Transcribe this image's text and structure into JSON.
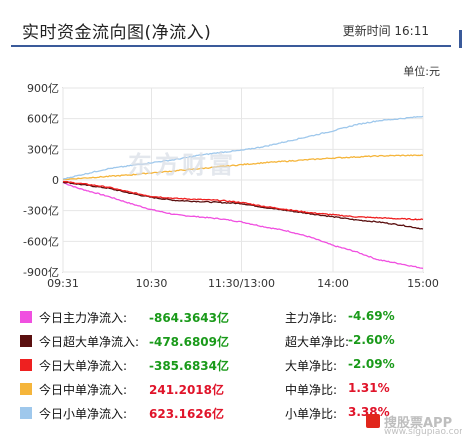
{
  "header": {
    "title": "实时资金流向图(净流入)",
    "updated_label": "更新时间",
    "time": "16:11"
  },
  "unit_label": "单位:元",
  "watermark": "东方财富",
  "site_badge": {
    "name": "搜股票APP",
    "url": "www.sigupiao.com"
  },
  "colors": {
    "main": "#f050e0",
    "super": "#5a0f0f",
    "large": "#ee2020",
    "medium": "#f5b53b",
    "small": "#9fc8ec",
    "accent": "#3a5a9a"
  },
  "legend": [
    {
      "label": "今日主力净流入:",
      "value": "-864.3643亿",
      "ratio_label": "主力净比:",
      "ratio": "-4.69%",
      "sign": "neg",
      "color": "#f050e0"
    },
    {
      "label": "今日超大单净流入:",
      "value": "-478.6809亿",
      "ratio_label": "超大单净比:",
      "ratio": "-2.60%",
      "sign": "neg",
      "color": "#5a0f0f"
    },
    {
      "label": "今日大单净流入:",
      "value": "-385.6834亿",
      "ratio_label": "大单净比:",
      "ratio": "-2.09%",
      "sign": "neg",
      "color": "#ee2020"
    },
    {
      "label": "今日中单净流入:",
      "value": "241.2018亿",
      "ratio_label": "中单净比:",
      "ratio": "1.31%",
      "sign": "pos",
      "color": "#f5b53b"
    },
    {
      "label": "今日小单净流入:",
      "value": "623.1626亿",
      "ratio_label": "小单净比:",
      "ratio": "3.38%",
      "sign": "pos",
      "color": "#9fc8ec"
    }
  ],
  "chart_data": {
    "type": "line",
    "ylim": [
      -900,
      900
    ],
    "yticks": [
      "900亿",
      "600亿",
      "300亿",
      "0",
      "-300亿",
      "-600亿",
      "-900亿"
    ],
    "ytick_values": [
      900,
      600,
      300,
      0,
      -300,
      -600,
      -900
    ],
    "xticks": [
      "09:31",
      "10:30",
      "11:30",
      "13:00",
      "14:00",
      "15:00"
    ],
    "xtick_index": [
      0,
      59,
      119,
      120,
      180,
      240
    ],
    "n_points": 241,
    "grid": true,
    "series": [
      {
        "name": "今日主力净流入",
        "color": "#f050e0",
        "knots": [
          [
            0,
            -25
          ],
          [
            10,
            -80
          ],
          [
            20,
            -120
          ],
          [
            30,
            -160
          ],
          [
            45,
            -230
          ],
          [
            59,
            -290
          ],
          [
            75,
            -340
          ],
          [
            90,
            -360
          ],
          [
            105,
            -380
          ],
          [
            119,
            -410
          ],
          [
            135,
            -460
          ],
          [
            150,
            -500
          ],
          [
            165,
            -560
          ],
          [
            180,
            -640
          ],
          [
            195,
            -700
          ],
          [
            210,
            -780
          ],
          [
            225,
            -820
          ],
          [
            240,
            -864
          ]
        ]
      },
      {
        "name": "今日超大单净流入",
        "color": "#5a0f0f",
        "knots": [
          [
            0,
            -20
          ],
          [
            15,
            -50
          ],
          [
            30,
            -80
          ],
          [
            45,
            -130
          ],
          [
            59,
            -170
          ],
          [
            75,
            -200
          ],
          [
            90,
            -210
          ],
          [
            105,
            -220
          ],
          [
            119,
            -230
          ],
          [
            135,
            -270
          ],
          [
            150,
            -300
          ],
          [
            165,
            -330
          ],
          [
            180,
            -360
          ],
          [
            195,
            -390
          ],
          [
            210,
            -410
          ],
          [
            225,
            -440
          ],
          [
            240,
            -479
          ]
        ]
      },
      {
        "name": "今日大单净流入",
        "color": "#ee2020",
        "knots": [
          [
            0,
            -15
          ],
          [
            15,
            -40
          ],
          [
            30,
            -70
          ],
          [
            45,
            -120
          ],
          [
            59,
            -160
          ],
          [
            75,
            -180
          ],
          [
            90,
            -190
          ],
          [
            105,
            -200
          ],
          [
            119,
            -220
          ],
          [
            135,
            -260
          ],
          [
            150,
            -290
          ],
          [
            165,
            -320
          ],
          [
            180,
            -340
          ],
          [
            195,
            -360
          ],
          [
            210,
            -370
          ],
          [
            225,
            -380
          ],
          [
            240,
            -386
          ]
        ]
      },
      {
        "name": "今日中单净流入",
        "color": "#f5b53b",
        "knots": [
          [
            0,
            5
          ],
          [
            15,
            20
          ],
          [
            30,
            35
          ],
          [
            45,
            50
          ],
          [
            59,
            70
          ],
          [
            75,
            90
          ],
          [
            90,
            110
          ],
          [
            105,
            130
          ],
          [
            119,
            150
          ],
          [
            135,
            170
          ],
          [
            150,
            185
          ],
          [
            165,
            200
          ],
          [
            180,
            215
          ],
          [
            195,
            225
          ],
          [
            210,
            235
          ],
          [
            225,
            240
          ],
          [
            240,
            241
          ]
        ]
      },
      {
        "name": "今日小单净流入",
        "color": "#9fc8ec",
        "knots": [
          [
            0,
            10
          ],
          [
            15,
            60
          ],
          [
            30,
            110
          ],
          [
            45,
            140
          ],
          [
            59,
            170
          ],
          [
            75,
            200
          ],
          [
            90,
            240
          ],
          [
            105,
            270
          ],
          [
            119,
            290
          ],
          [
            135,
            330
          ],
          [
            150,
            380
          ],
          [
            165,
            430
          ],
          [
            180,
            480
          ],
          [
            195,
            540
          ],
          [
            210,
            580
          ],
          [
            225,
            600
          ],
          [
            240,
            623
          ]
        ]
      }
    ]
  }
}
